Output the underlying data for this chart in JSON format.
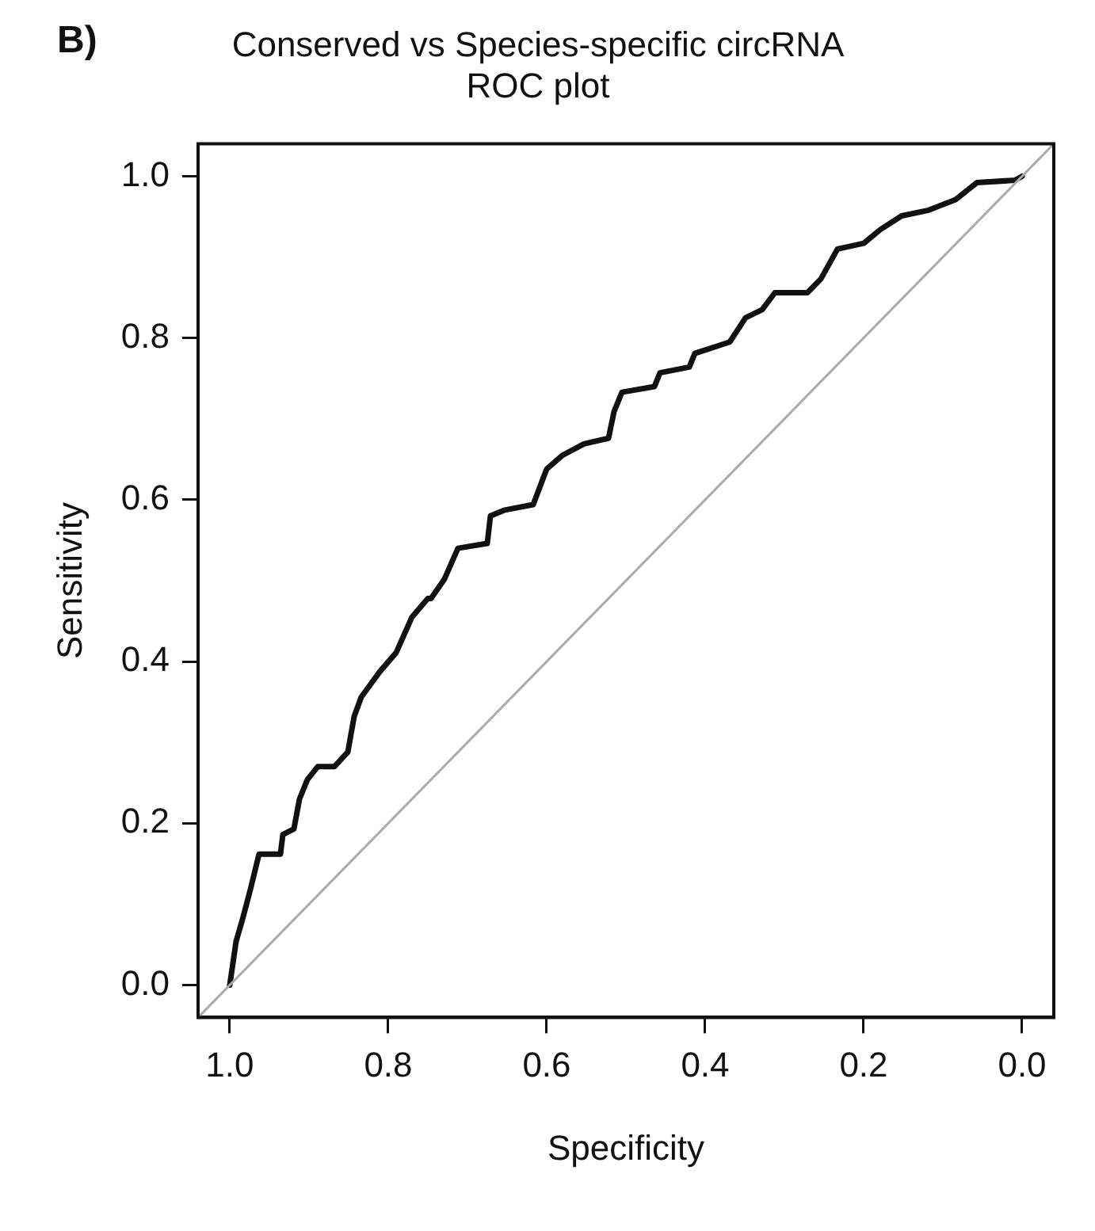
{
  "chart_data": {
    "type": "line",
    "title": "Conserved vs Species-specific circRNA\nROC plot",
    "xlabel": "Specificity",
    "ylabel": "Sensitivity",
    "annotations": [
      "B)"
    ],
    "xlim": [
      1.04,
      -0.04
    ],
    "ylim": [
      -0.04,
      1.04
    ],
    "xticks": [
      {
        "value": 1,
        "label": "1.0"
      },
      {
        "value": 0.8,
        "label": "0.8"
      },
      {
        "value": 0.6,
        "label": "0.6"
      },
      {
        "value": 0.4,
        "label": "0.4"
      },
      {
        "value": 0.2,
        "label": "0.2"
      },
      {
        "value": 0,
        "label": "0.0"
      }
    ],
    "yticks": [
      {
        "value": 0,
        "label": "0.0"
      },
      {
        "value": 0.2,
        "label": "0.2"
      },
      {
        "value": 0.4,
        "label": "0.4"
      },
      {
        "value": 0.6,
        "label": "0.6"
      },
      {
        "value": 0.8,
        "label": "0.8"
      },
      {
        "value": 1,
        "label": "1.0"
      }
    ],
    "grid": false,
    "legend": false,
    "marker": "none",
    "line_style": "solid",
    "series": [
      {
        "color": "#aaaaaa",
        "x": [
          1.04,
          -0.04
        ],
        "values": [
          -0.04,
          1.04
        ]
      },
      {
        "color": "#111111",
        "x": [
          1,
          0.992,
          0.984,
          0.974,
          0.963,
          0.936,
          0.933,
          0.919,
          0.912,
          0.902,
          0.889,
          0.868,
          0.851,
          0.843,
          0.834,
          0.811,
          0.79,
          0.77,
          0.75,
          0.746,
          0.729,
          0.712,
          0.675,
          0.671,
          0.654,
          0.617,
          0.6,
          0.58,
          0.553,
          0.522,
          0.515,
          0.505,
          0.464,
          0.457,
          0.42,
          0.413,
          0.369,
          0.349,
          0.328,
          0.312,
          0.271,
          0.254,
          0.233,
          0.2,
          0.179,
          0.152,
          0.118,
          0.084,
          0.057,
          0.009,
          0
        ],
        "values": [
          0,
          0.054,
          0.081,
          0.118,
          0.162,
          0.162,
          0.186,
          0.193,
          0.23,
          0.254,
          0.27,
          0.27,
          0.288,
          0.332,
          0.356,
          0.387,
          0.411,
          0.455,
          0.478,
          0.478,
          0.502,
          0.54,
          0.546,
          0.58,
          0.587,
          0.594,
          0.638,
          0.655,
          0.669,
          0.676,
          0.709,
          0.733,
          0.74,
          0.757,
          0.764,
          0.781,
          0.795,
          0.825,
          0.835,
          0.856,
          0.856,
          0.873,
          0.91,
          0.917,
          0.934,
          0.951,
          0.958,
          0.971,
          0.992,
          0.995,
          1
        ]
      }
    ]
  }
}
